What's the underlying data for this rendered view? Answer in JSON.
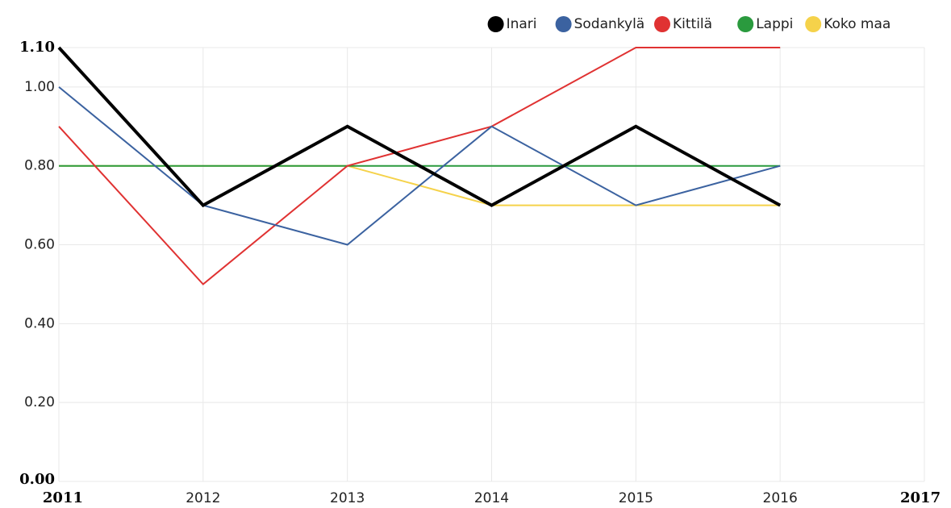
{
  "chart_data": {
    "type": "line",
    "x": [
      2011,
      2012,
      2013,
      2014,
      2015,
      2016
    ],
    "series": [
      {
        "name": "Inari",
        "color": "#000000",
        "values": [
          1.1,
          0.7,
          0.9,
          0.7,
          0.9,
          0.7
        ]
      },
      {
        "name": "Sodankylä",
        "color": "#3b62a0",
        "values": [
          1.0,
          0.7,
          0.6,
          0.9,
          0.7,
          0.8
        ]
      },
      {
        "name": "Kittilä",
        "color": "#e03232",
        "values": [
          0.9,
          0.5,
          0.8,
          0.9,
          1.1,
          1.1
        ]
      },
      {
        "name": "Lappi",
        "color": "#2a9a3e",
        "values": [
          0.8,
          0.8,
          0.8,
          0.8,
          0.8,
          0.8
        ]
      },
      {
        "name": "Koko maa",
        "color": "#f5d24a",
        "values": [
          0.8,
          0.8,
          0.8,
          0.7,
          0.7,
          0.7
        ]
      }
    ],
    "xlim": [
      2011,
      2017
    ],
    "xticks": [
      2011,
      2012,
      2013,
      2014,
      2015,
      2016,
      2017
    ],
    "ylim": [
      0,
      1.1
    ],
    "yticks": [
      {
        "value": 0,
        "label": "0.00"
      },
      {
        "value": 0.2,
        "label": "0.20"
      },
      {
        "value": 0.4,
        "label": "0.40"
      },
      {
        "value": 0.6,
        "label": "0.60"
      },
      {
        "value": 0.8,
        "label": "0.80"
      },
      {
        "value": 1.0,
        "label": "1.00"
      },
      {
        "value": 1.1,
        "label": "1.10"
      }
    ],
    "grid": true,
    "legend": "top"
  }
}
